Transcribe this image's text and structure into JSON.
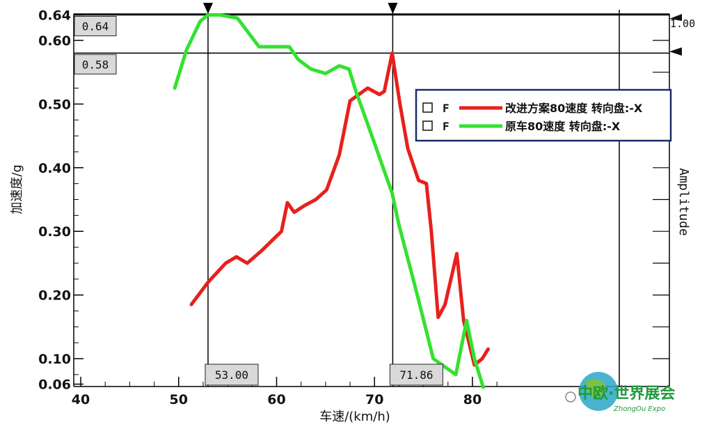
{
  "chart_data": {
    "type": "line",
    "xlabel": "车速/(km/h)",
    "ylabel": "加速度/g",
    "y2label": "Amplitude",
    "xlim": [
      40,
      84
    ],
    "ylim": [
      0.04,
      0.655
    ],
    "x_ticks": [
      40,
      50,
      60,
      70,
      80
    ],
    "y_ticks": [
      0.06,
      0.1,
      0.2,
      0.3,
      0.4,
      0.5,
      0.6,
      0.64
    ],
    "y_tick_labels": [
      "0.06",
      "0.10",
      "0.20",
      "0.30",
      "0.40",
      "0.50",
      "0.60",
      "0.64"
    ],
    "y2_tick_labels": [
      "1.00"
    ],
    "grid": false,
    "legend_position": "right, upper-middle",
    "cursors": {
      "vertical": [
        {
          "x": 53.0,
          "label": "53.00"
        },
        {
          "x": 71.86,
          "label": "71.86"
        }
      ],
      "horizontal": [
        {
          "y": 0.64,
          "label": "0.64"
        },
        {
          "y": 0.58,
          "label": "0.58"
        }
      ]
    },
    "series": [
      {
        "name": "改进方案80速度 转向盘:-X",
        "legend_marker": "F",
        "color": "#e8201c",
        "x": [
          51.3,
          53.0,
          54.8,
          55.9,
          57.0,
          58.5,
          60.5,
          61.1,
          61.8,
          62.8,
          64.0,
          65.1,
          66.4,
          67.5,
          69.3,
          70.5,
          71.0,
          71.8,
          72.6,
          73.4,
          74.5,
          75.3,
          75.8,
          76.5,
          77.2,
          78.4,
          79.1,
          80.2,
          81.0,
          81.6
        ],
        "y": [
          0.185,
          0.22,
          0.25,
          0.26,
          0.25,
          0.27,
          0.3,
          0.345,
          0.33,
          0.34,
          0.35,
          0.365,
          0.42,
          0.505,
          0.525,
          0.515,
          0.52,
          0.58,
          0.5,
          0.43,
          0.38,
          0.375,
          0.3,
          0.165,
          0.185,
          0.265,
          0.16,
          0.09,
          0.1,
          0.115
        ]
      },
      {
        "name": "原车80速度 转向盘:-X",
        "legend_marker": "F",
        "color": "#33e22f",
        "x": [
          49.6,
          50.8,
          52.2,
          53.0,
          54.2,
          56.0,
          58.2,
          61.3,
          62.2,
          63.5,
          65.0,
          66.4,
          67.4,
          68.1,
          69.5,
          71.8,
          72.5,
          74.2,
          76.0,
          78.3,
          79.4,
          80.2,
          81.1
        ],
        "y": [
          0.525,
          0.585,
          0.63,
          0.64,
          0.64,
          0.635,
          0.59,
          0.59,
          0.57,
          0.555,
          0.548,
          0.56,
          0.555,
          0.52,
          0.46,
          0.36,
          0.31,
          0.21,
          0.1,
          0.075,
          0.16,
          0.1,
          0.055
        ]
      }
    ]
  },
  "watermark": {
    "title": "中欧·世界展会",
    "subtitle": "ZhongOu Expo"
  },
  "colors": {
    "background": "#ffffff",
    "axis": "#000000",
    "label_box_fill": "#d9d9d9",
    "legend_border": "#1a2a66"
  }
}
